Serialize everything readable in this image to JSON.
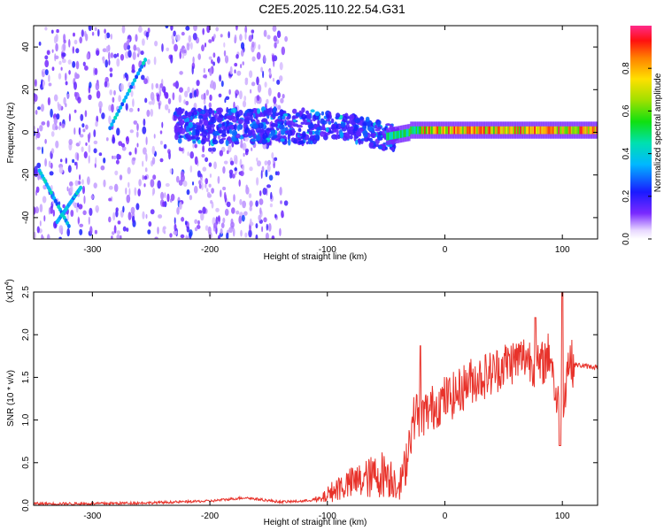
{
  "title": "C2E5.2025.110.22.54.G31",
  "chart_data": [
    {
      "type": "heatmap",
      "xlabel": "Height of straight line (km)",
      "ylabel": "Frequency (Hz)",
      "xlim": [
        -350,
        130
      ],
      "ylim": [
        -50,
        50
      ],
      "xticks": [
        "-300",
        "-200",
        "-100",
        "0",
        "100"
      ],
      "xtick_values": [
        -300,
        -200,
        -100,
        0,
        100
      ],
      "yticks": [
        "-40",
        "-20",
        "0",
        "20",
        "40"
      ],
      "ytick_values": [
        -40,
        -20,
        0,
        20,
        40
      ],
      "colorbar": {
        "label": "Normalized spectral amplitude",
        "range": [
          0,
          1
        ],
        "ticks": [
          "0.0",
          "0.2",
          "0.4",
          "0.6",
          "0.8"
        ],
        "tick_values": [
          0.0,
          0.2,
          0.4,
          0.6,
          0.8
        ]
      },
      "features": [
        {
          "x": [
            -350,
            -140
          ],
          "description_free": true,
          "kind": "scattered_noise",
          "level": 0.12
        },
        {
          "x": [
            -230,
            -40
          ],
          "y_center": 3,
          "kind": "band",
          "level": 0.3
        },
        {
          "x": [
            -50,
            130
          ],
          "y_center": 1,
          "kind": "strong_band",
          "level": 0.9
        },
        {
          "x": [
            -345,
            -320
          ],
          "y": [
            -18,
            -44
          ],
          "kind": "diagonal_trace",
          "level": 0.35
        },
        {
          "x": [
            -285,
            -255
          ],
          "y": [
            2,
            34
          ],
          "kind": "diagonal_trace",
          "level": 0.35
        }
      ]
    },
    {
      "type": "line",
      "xlabel": "Height of straight line (km)",
      "ylabel": "SNR (10 * v/v)",
      "multiplier_label": "(x10",
      "multiplier_exp": "4",
      "xlim": [
        -350,
        130
      ],
      "ylim": [
        0,
        2.5
      ],
      "xticks": [
        "-300",
        "-200",
        "-100",
        "0",
        "100"
      ],
      "xtick_values": [
        -300,
        -200,
        -100,
        0,
        100
      ],
      "yticks": [
        "0.0",
        "0.5",
        "1.0",
        "1.5",
        "2.0",
        "2.5"
      ],
      "ytick_values": [
        0.0,
        0.5,
        1.0,
        1.5,
        2.0,
        2.5
      ],
      "color": "#e8322a",
      "series": [
        {
          "x": [
            -350,
            -300,
            -250,
            -200,
            -170,
            -140,
            -120,
            -105,
            -100,
            -90,
            -80,
            -70,
            -60,
            -50,
            -40,
            -35,
            -30,
            -25,
            -20,
            -10,
            0,
            10,
            20,
            30,
            40,
            50,
            60,
            70,
            80,
            90,
            95,
            100,
            105,
            110,
            120,
            130
          ],
          "y": [
            0.02,
            0.02,
            0.03,
            0.05,
            0.09,
            0.04,
            0.05,
            0.08,
            0.15,
            0.25,
            0.3,
            0.35,
            0.4,
            0.45,
            0.3,
            0.35,
            0.8,
            1.1,
            1.05,
            1.15,
            1.25,
            1.3,
            1.45,
            1.5,
            1.55,
            1.65,
            1.7,
            1.75,
            1.6,
            1.8,
            1.2,
            1.1,
            1.7,
            1.65,
            1.63,
            1.62
          ]
        }
      ],
      "peaks": [
        {
          "x": -21,
          "y": 1.87
        },
        {
          "x": 100,
          "y": 2.52
        },
        {
          "x": 77,
          "y": 2.2
        }
      ]
    }
  ]
}
